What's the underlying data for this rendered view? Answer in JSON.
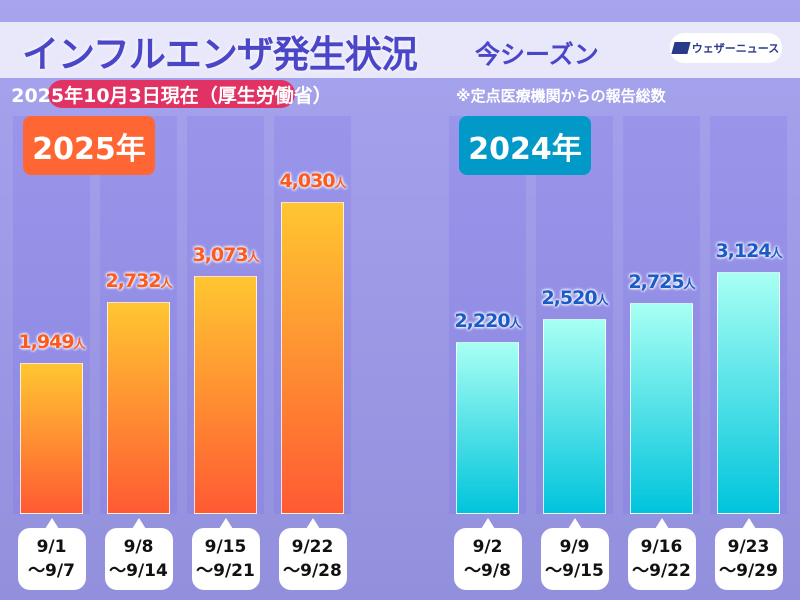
{
  "header": {
    "title": "インフルエンザ発生状況",
    "subtitle": "今シーズン",
    "logo": "ウェザーニュース",
    "date": "2025年10月3日現在（厚生労働省）",
    "note": "※定点医療機関からの報告総数"
  },
  "chart_data": {
    "type": "bar",
    "unit": "人",
    "ylim": [
      0,
      4030
    ],
    "grid": false,
    "groups": [
      {
        "name": "2025年",
        "color_top": "#ffc631",
        "color_bottom": "#ff5a33",
        "label_color": "#ff5a1e",
        "year_color": "#ff6633",
        "categories": [
          [
            "9/1",
            "～9/7"
          ],
          [
            "9/8",
            "～9/14"
          ],
          [
            "9/15",
            "～9/21"
          ],
          [
            "9/22",
            "～9/28"
          ]
        ],
        "values": [
          1949,
          2732,
          3073,
          4030
        ],
        "labels": [
          "1,949",
          "2,732",
          "3,073",
          "4,030"
        ]
      },
      {
        "name": "2024年",
        "color_top": "#a8fff3",
        "color_bottom": "#00c4dc",
        "label_color": "#1a5bc8",
        "year_color": "#0099c8",
        "categories": [
          [
            "9/2",
            "～9/8"
          ],
          [
            "9/9",
            "～9/15"
          ],
          [
            "9/16",
            "～9/22"
          ],
          [
            "9/23",
            "～9/29"
          ]
        ],
        "values": [
          2220,
          2520,
          2725,
          3124
        ],
        "labels": [
          "2,220",
          "2,520",
          "2,725",
          "3,124"
        ]
      }
    ]
  }
}
